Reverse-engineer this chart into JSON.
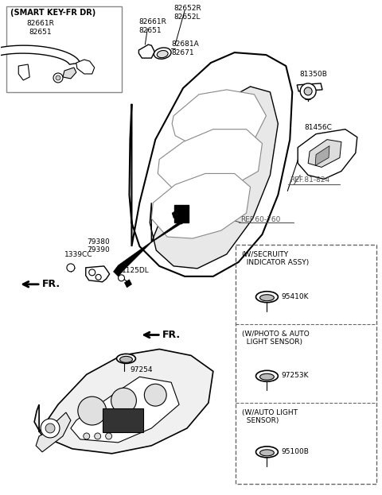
{
  "bg_color": "#ffffff",
  "labels": {
    "smart_key_box_title": "(SMART KEY-FR DR)",
    "smart_key_parts": "82661R\n82651",
    "handle_label1": "82652R\n82652L",
    "handle_label2": "82661R\n82651",
    "handle_label3": "82681A\n82671",
    "bolt1": "81350B",
    "bolt2": "81456C",
    "ref1": "REF.81-824",
    "ref2": "REF.60-760",
    "latch1": "79380\n79390",
    "latch2": "1339CC",
    "latch3": "1125DL",
    "fr1": "FR.",
    "fr2": "FR.",
    "sensor1_title": "(W/SECRUITY\n  INDICATOR ASSY)",
    "sensor1_part": "95410K",
    "sensor2_title": "(W/PHOTO & AUTO\n  LIGHT SENSOR)",
    "sensor2_part": "97253K",
    "sensor3_title": "(W/AUTO LIGHT\n  SENSOR)",
    "sensor3_part": "95100B",
    "dash_part": "97254"
  }
}
